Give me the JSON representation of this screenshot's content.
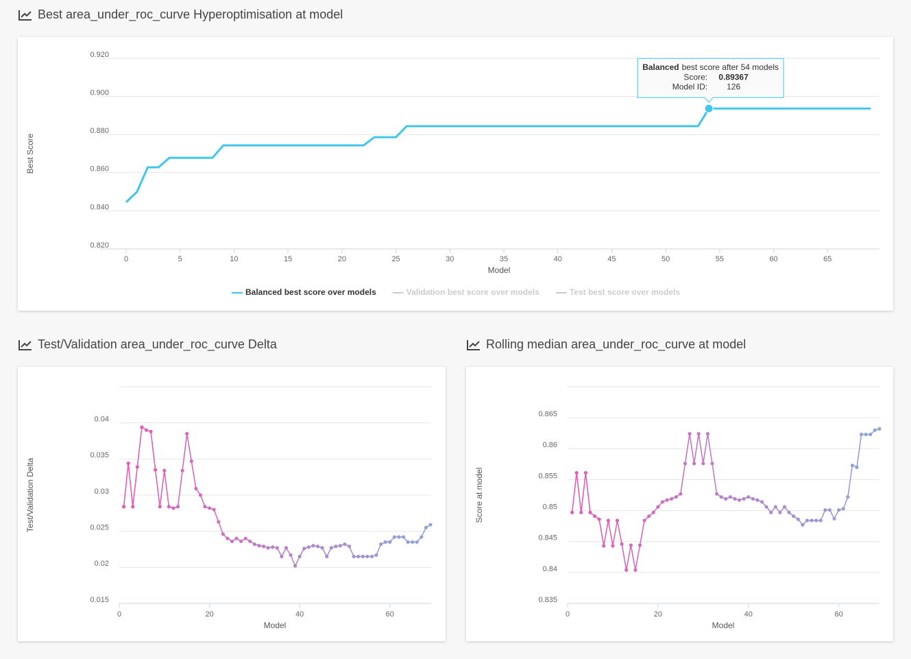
{
  "chart_data": [
    {
      "type": "line",
      "title": "Best area_under_roc_curve Hyperoptimisation at model",
      "xlabel": "Model",
      "ylabel": "Best Score",
      "x": [
        0,
        1,
        2,
        3,
        4,
        5,
        6,
        7,
        8,
        9,
        10,
        11,
        12,
        13,
        14,
        15,
        16,
        17,
        18,
        19,
        20,
        21,
        22,
        23,
        24,
        25,
        26,
        27,
        28,
        29,
        30,
        31,
        32,
        33,
        34,
        35,
        36,
        37,
        38,
        39,
        40,
        41,
        42,
        43,
        44,
        45,
        46,
        47,
        48,
        49,
        50,
        51,
        52,
        53,
        54,
        55,
        56,
        57,
        58,
        59,
        60,
        61,
        62,
        63,
        64,
        65,
        66,
        67,
        68,
        69
      ],
      "series": [
        {
          "name": "Balanced best score over models",
          "color": "#3fc6ea",
          "values": [
            0.8445,
            0.8499,
            0.8628,
            0.8628,
            0.8678,
            0.8678,
            0.8678,
            0.8678,
            0.8678,
            0.8743,
            0.8743,
            0.8743,
            0.8743,
            0.8743,
            0.8743,
            0.8743,
            0.8743,
            0.8743,
            0.8743,
            0.8743,
            0.8743,
            0.8743,
            0.8743,
            0.8786,
            0.8786,
            0.8786,
            0.8844,
            0.8844,
            0.8844,
            0.8844,
            0.8844,
            0.8844,
            0.8844,
            0.8844,
            0.8844,
            0.8844,
            0.8844,
            0.8844,
            0.8844,
            0.8844,
            0.8844,
            0.8844,
            0.8844,
            0.8844,
            0.8844,
            0.8844,
            0.8844,
            0.8844,
            0.8844,
            0.8844,
            0.8844,
            0.8844,
            0.8844,
            0.8844,
            0.89367,
            0.89367,
            0.89367,
            0.89367,
            0.89367,
            0.89367,
            0.89367,
            0.89367,
            0.89367,
            0.89367,
            0.89367,
            0.89367,
            0.89367,
            0.89367,
            0.89367,
            0.89367
          ]
        },
        {
          "name": "Validation best score over models",
          "color": "#cccccc",
          "visible": false
        },
        {
          "name": "Test best score over models",
          "color": "#cccccc",
          "visible": false
        }
      ],
      "xlim": [
        0,
        70
      ],
      "xticks": [
        0,
        5,
        10,
        15,
        20,
        25,
        30,
        35,
        40,
        45,
        50,
        55,
        60,
        65
      ],
      "ylim": [
        0.82,
        0.92
      ],
      "yticks": [
        {
          "value": 0.82,
          "label": "0.820"
        },
        {
          "value": 0.84,
          "label": "0.840"
        },
        {
          "value": 0.86,
          "label": "0.860"
        },
        {
          "value": 0.88,
          "label": "0.880"
        },
        {
          "value": 0.9,
          "label": "0.900"
        },
        {
          "value": 0.92,
          "label": "0.920"
        }
      ],
      "grid": true,
      "legend": "bottom",
      "tooltip": {
        "bold": "Balanced",
        "text": "best score after 54 models",
        "rows": [
          {
            "label": "Score:",
            "value": 0.89367
          },
          {
            "label": "Model ID:",
            "value": 126
          }
        ]
      }
    },
    {
      "type": "line",
      "title": "Test/Validation area_under_roc_curve Delta",
      "xlabel": "Model",
      "ylabel": "Test/Validation Delta",
      "x": [
        1,
        2,
        3,
        4,
        5,
        6,
        7,
        8,
        9,
        10,
        11,
        12,
        13,
        14,
        15,
        16,
        17,
        18,
        19,
        20,
        21,
        22,
        23,
        24,
        25,
        26,
        27,
        28,
        29,
        30,
        31,
        32,
        33,
        34,
        35,
        36,
        37,
        38,
        39,
        40,
        41,
        42,
        43,
        44,
        45,
        46,
        47,
        48,
        49,
        50,
        51,
        52,
        53,
        54,
        55,
        56,
        57,
        58,
        59,
        60,
        61,
        62,
        63,
        64,
        65,
        66,
        67,
        68,
        69
      ],
      "series": [
        {
          "name": "Test/Validation Delta",
          "colors": [
            "#e35bb5",
            "#8ea6db"
          ],
          "values": [
            0.0284,
            0.0344,
            0.0284,
            0.0339,
            0.0394,
            0.039,
            0.0388,
            0.0335,
            0.0284,
            0.0334,
            0.0284,
            0.0282,
            0.0284,
            0.0334,
            0.0385,
            0.0347,
            0.0309,
            0.03,
            0.0284,
            0.0282,
            0.028,
            0.0263,
            0.0246,
            0.024,
            0.0236,
            0.024,
            0.0236,
            0.024,
            0.0236,
            0.0232,
            0.023,
            0.0229,
            0.0227,
            0.0228,
            0.0227,
            0.0215,
            0.0227,
            0.0217,
            0.0202,
            0.0215,
            0.0226,
            0.0228,
            0.023,
            0.0229,
            0.0227,
            0.0215,
            0.0227,
            0.0229,
            0.023,
            0.0232,
            0.0229,
            0.0215,
            0.0215,
            0.0215,
            0.0215,
            0.0215,
            0.0217,
            0.0232,
            0.0235,
            0.0235,
            0.0242,
            0.0242,
            0.0242,
            0.0235,
            0.0235,
            0.0235,
            0.0242,
            0.0255,
            0.0259
          ]
        }
      ],
      "xlim": [
        0,
        69
      ],
      "xticks": [
        0,
        20,
        40,
        60
      ],
      "ylim": [
        0.015,
        0.045
      ],
      "yticks": [
        0.015,
        0.02,
        0.025,
        0.03,
        0.035,
        0.04
      ],
      "grid": true
    },
    {
      "type": "line",
      "title": "Rolling median area_under_roc_curve at model",
      "xlabel": "Model",
      "ylabel": "Score at model",
      "x": [
        1,
        2,
        3,
        4,
        5,
        6,
        7,
        8,
        9,
        10,
        11,
        12,
        13,
        14,
        15,
        16,
        17,
        18,
        19,
        20,
        21,
        22,
        23,
        24,
        25,
        26,
        27,
        28,
        29,
        30,
        31,
        32,
        33,
        34,
        35,
        36,
        37,
        38,
        39,
        40,
        41,
        42,
        43,
        44,
        45,
        46,
        47,
        48,
        49,
        50,
        51,
        52,
        53,
        54,
        55,
        56,
        57,
        58,
        59,
        60,
        61,
        62,
        63,
        64,
        65,
        66,
        67,
        68,
        69
      ],
      "series": [
        {
          "name": "Score at model",
          "colors": [
            "#e35bb5",
            "#8ea6db"
          ],
          "values": [
            0.8497,
            0.8561,
            0.8497,
            0.8561,
            0.8497,
            0.8491,
            0.8486,
            0.8443,
            0.8484,
            0.8443,
            0.8484,
            0.8446,
            0.8404,
            0.8444,
            0.8404,
            0.8444,
            0.8484,
            0.8491,
            0.8497,
            0.8506,
            0.8514,
            0.8517,
            0.8519,
            0.8522,
            0.8527,
            0.8576,
            0.8624,
            0.8576,
            0.8624,
            0.8576,
            0.8624,
            0.8576,
            0.8527,
            0.8522,
            0.8519,
            0.8522,
            0.8519,
            0.8517,
            0.8519,
            0.8522,
            0.8519,
            0.8517,
            0.8514,
            0.8506,
            0.8497,
            0.8506,
            0.8497,
            0.8506,
            0.8497,
            0.8491,
            0.8486,
            0.8477,
            0.8484,
            0.8484,
            0.8484,
            0.8484,
            0.8501,
            0.8501,
            0.8487,
            0.8501,
            0.8503,
            0.8522,
            0.8573,
            0.857,
            0.8623,
            0.8623,
            0.8623,
            0.863,
            0.8632
          ]
        }
      ],
      "xlim": [
        0,
        69
      ],
      "xticks": [
        0,
        20,
        40,
        60
      ],
      "ylim": [
        0.835,
        0.87
      ],
      "yticks": [
        0.835,
        0.84,
        0.845,
        0.85,
        0.855,
        0.86,
        0.865
      ],
      "grid": true
    }
  ]
}
